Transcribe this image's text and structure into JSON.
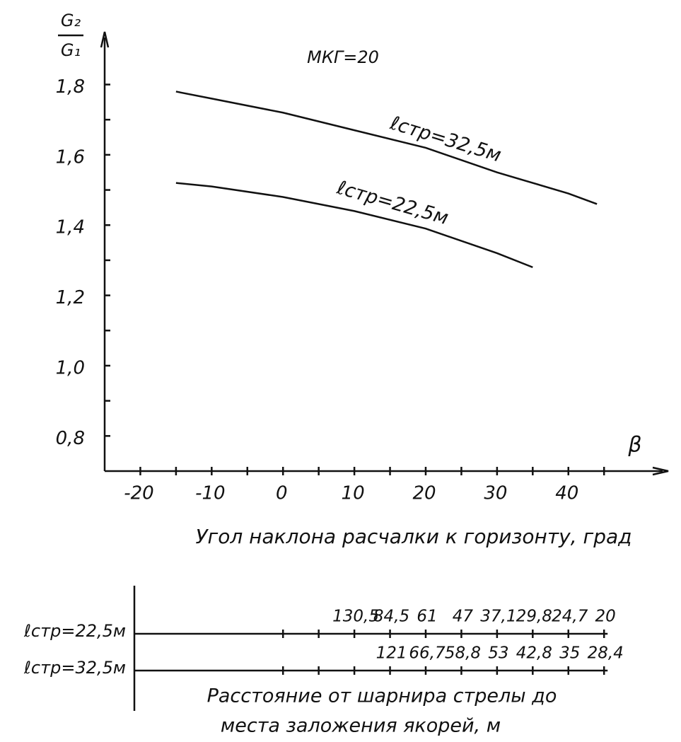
{
  "chart_data": [
    {
      "type": "line",
      "title": "МКГ=20",
      "ylabel": {
        "numerator": "G₂",
        "denominator": "G₁"
      },
      "xsymbol": "β",
      "xlabel": "Угол наклона расчалки к горизонту, град",
      "xlim": [
        -25,
        54
      ],
      "ylim": [
        0.7,
        1.95
      ],
      "xticks": [
        -20,
        -10,
        0,
        10,
        20,
        30,
        40
      ],
      "yticks": [
        {
          "value": 0.8,
          "label": "0,8"
        },
        {
          "value": 1.0,
          "label": "1,0"
        },
        {
          "value": 1.2,
          "label": "1,2"
        },
        {
          "value": 1.4,
          "label": "1,4"
        },
        {
          "value": 1.6,
          "label": "1,6"
        },
        {
          "value": 1.8,
          "label": "1,8"
        }
      ],
      "color": "#111111",
      "series": [
        {
          "name": "ℓстр=32,5м",
          "x": [
            -15,
            -10,
            0,
            10,
            20,
            30,
            40,
            44
          ],
          "values": [
            1.78,
            1.76,
            1.72,
            1.67,
            1.62,
            1.55,
            1.49,
            1.46
          ]
        },
        {
          "name": "ℓстр=22,5м",
          "x": [
            -15,
            -10,
            0,
            10,
            20,
            30,
            35
          ],
          "values": [
            1.52,
            1.51,
            1.48,
            1.44,
            1.39,
            1.32,
            1.28
          ]
        }
      ]
    },
    {
      "type": "scale",
      "xlabel": [
        "Расстояние от шарнира стрелы до",
        "места заложения якорей, м"
      ],
      "xlim": [
        -25,
        54
      ],
      "xticks": [
        0,
        5,
        10,
        15,
        20,
        25,
        30,
        35,
        40,
        45
      ],
      "rows": [
        {
          "name": "ℓстр=22,5м",
          "x": [
            10,
            15,
            20,
            25,
            30,
            35,
            40,
            45
          ],
          "values": [
            {
              "value": 130.5,
              "label": "130,5"
            },
            {
              "value": 84.5,
              "label": "84,5"
            },
            61,
            47,
            {
              "value": 37.1,
              "label": "37,1"
            },
            {
              "value": 29.8,
              "label": "29,8"
            },
            {
              "value": 24.7,
              "label": "24,7"
            },
            20
          ]
        },
        {
          "name": "ℓстр=32,5м",
          "x": [
            15,
            20,
            25,
            30,
            35,
            40,
            45
          ],
          "values": [
            121,
            {
              "value": 66.7,
              "label": "66,7"
            },
            {
              "value": 58.8,
              "label": "58,8"
            },
            53,
            {
              "value": 42.8,
              "label": "42,8"
            },
            35,
            {
              "value": 28.4,
              "label": "28,4"
            }
          ]
        }
      ]
    }
  ]
}
